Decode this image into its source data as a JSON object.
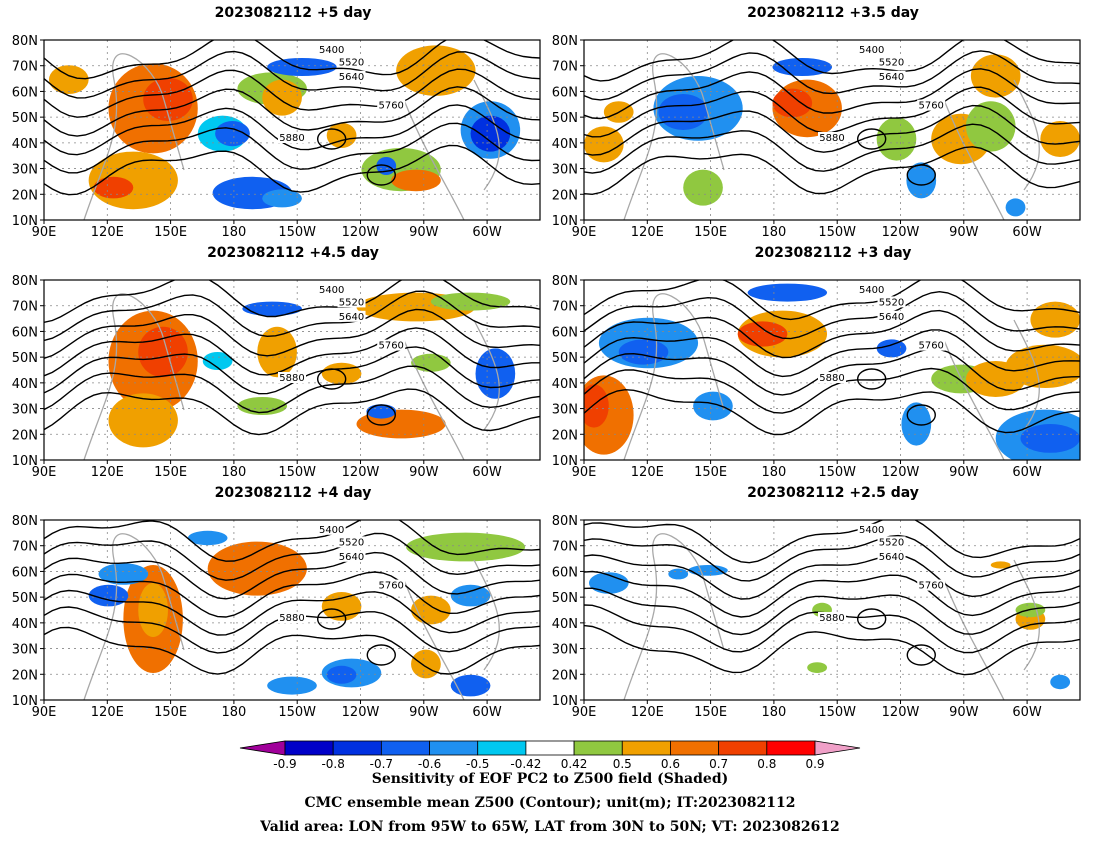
{
  "panels": [
    {
      "title": "2023082112 +5 day"
    },
    {
      "title": "2023082112 +3.5 day"
    },
    {
      "title": "2023082112 +4.5 day"
    },
    {
      "title": "2023082112 +3 day"
    },
    {
      "title": "2023082112 +4 day"
    },
    {
      "title": "2023082112 +2.5 day"
    }
  ],
  "lat_labels": [
    "80N",
    "70N",
    "60N",
    "50N",
    "40N",
    "30N",
    "20N",
    "10N"
  ],
  "lon_labels": [
    "90E",
    "120E",
    "150E",
    "180",
    "150W",
    "120W",
    "90W",
    "60W"
  ],
  "contour_labels": [
    "5400",
    "5520",
    "5640",
    "5760",
    "5880"
  ],
  "colorbar": {
    "labels": [
      "-0.9",
      "-0.8",
      "-0.7",
      "-0.6",
      "-0.5",
      "-0.42",
      "0.42",
      "0.5",
      "0.6",
      "0.7",
      "0.8",
      "0.9"
    ],
    "colors": [
      "#a0009a",
      "#0000c8",
      "#0030e0",
      "#1060f0",
      "#2090f0",
      "#00c8f0",
      "#ffffff",
      "#90c840",
      "#f0a000",
      "#f07000",
      "#f04000",
      "#ff0000",
      "#f0a0c8"
    ]
  },
  "footer": {
    "line1": "Sensitivity of EOF PC2 to Z500 field (Shaded)",
    "line2": "CMC ensemble mean Z500 (Contour); unit(m); IT:2023082112",
    "line3": "Valid area: LON from 95W to 65W, LAT from 30N to 50N; VT: 2023082612"
  }
}
